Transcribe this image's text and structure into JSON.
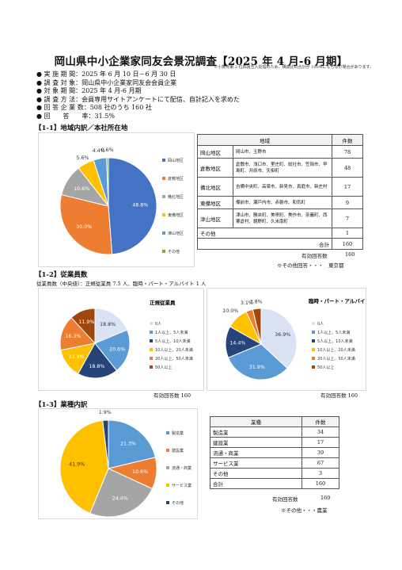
{
  "header": {
    "title": "岡山県中小企業家同友会景況調査【2025 年 4 月-6 月期】",
    "note": "※小数点第 2 位四捨五入処理のため、構成比の合計が 100%にならない場合があります。",
    "meta": [
      "● 実 施 期 間：2025 年 6 月 10 日－6 月 30 日",
      "● 調 査 対 象：岡山県中小企業家同友会会員企業",
      "● 対 象 期 間：2025 年 4 月-6 月期",
      "● 調 査 方 法：会員専用サイトアンケートにて配信、自計記入を求めた",
      "● 回 答 企 業 数：508 社のうち 160 社",
      "● 回　　答　　率：31.5%"
    ]
  },
  "colors": {
    "blue": "#4472c4",
    "orange": "#ed7d31",
    "gray": "#a5a5a5",
    "yellow": "#ffc000",
    "lightblue": "#5b9bd5",
    "green": "#70ad47",
    "navy": "#264478",
    "brown": "#9e480e",
    "paleblue": "#dae3f3"
  },
  "sec1": {
    "heading": "【1-1】地域内訳／本社所在地",
    "table_headers": [
      "地域",
      "件数"
    ],
    "rows": [
      {
        "region": "岡山地区",
        "cities": "岡山市、玉野市",
        "count": "78"
      },
      {
        "region": "倉敷地区",
        "cities": "倉敷市、浅口市、里庄町、総社市、笠岡市、早島町、井原市、矢掛町",
        "count": "48"
      },
      {
        "region": "備北地区",
        "cities": "吉備中央町、高梁市、新見市、真庭市、新庄村",
        "count": "17"
      },
      {
        "region": "東備地区",
        "cities": "備前市、瀬戸内市、赤磐市、和気町",
        "count": "9"
      },
      {
        "region": "津山地区",
        "cities": "津山市、勝央町、美咲町、美作市、奈義町、西粟倉村、鏡野町、久米南町",
        "count": "7"
      },
      {
        "region": "その他",
        "cities": "",
        "count": "1"
      }
    ],
    "total_label": "合計",
    "total": "160",
    "valid_label": "有効回答数",
    "valid": "160",
    "footnote": "※その他回答・・・　東京都"
  },
  "sec2": {
    "heading": "【1-2】従業員数",
    "median": "従業員数（中央値）：正規従業員 7.5 人、臨時・パート・アルバイト 1 人",
    "chart1_title": "正規従業員",
    "chart2_title": "臨時・パート・アルバイト",
    "valid1": "有効回答数 160",
    "valid2": "有効回答数 160"
  },
  "sec3": {
    "heading": "【1-3】業種内訳",
    "table_headers": [
      "業種",
      "件数"
    ],
    "rows": [
      {
        "name": "製造業",
        "count": "34"
      },
      {
        "name": "建設業",
        "count": "17"
      },
      {
        "name": "流通・商業",
        "count": "39"
      },
      {
        "name": "サービス業",
        "count": "67"
      },
      {
        "name": "その他",
        "count": "3"
      },
      {
        "name": "合計",
        "count": "160"
      }
    ],
    "valid_label": "有効回答数",
    "valid": "160",
    "footnote": "※その他・・・農業"
  },
  "chart_data": [
    {
      "type": "pie",
      "categories": [
        "岡山地区",
        "倉敷地区",
        "備北地区",
        "東備地区",
        "津山地区",
        "その他"
      ],
      "values": [
        48.8,
        30.0,
        10.6,
        5.6,
        4.4,
        0.6
      ],
      "labels": [
        "48.8%",
        "30.0%",
        "10.6%",
        "5.6%",
        "4.4%",
        "0.6%"
      ],
      "legend": "right"
    },
    {
      "type": "pie",
      "title": "正規従業員",
      "categories": [
        "0人",
        "1人以上、5人未満",
        "5人以上、10人未満",
        "10人以上、20人未満",
        "20人以上、50人未満",
        "50人以上"
      ],
      "values": [
        18.8,
        20.6,
        18.8,
        13.8,
        16.3,
        11.9
      ],
      "labels": [
        "18.8%",
        "20.6%",
        "18.8%",
        "13.8%",
        "16.3%",
        "11.9%"
      ],
      "legend": "right"
    },
    {
      "type": "pie",
      "title": "臨時・パート・アルバイト",
      "categories": [
        "0人",
        "1人以上、5人未満",
        "5人以上、10人未満",
        "10人以上、20人未満",
        "20人以上、50人未満",
        "50人以上"
      ],
      "values": [
        36.9,
        31.9,
        14.4,
        10.0,
        3.1,
        3.8
      ],
      "labels": [
        "36.9%",
        "31.9%",
        "14.4%",
        "10.0%",
        "3.1%",
        "3.8%"
      ],
      "legend": "right"
    },
    {
      "type": "pie",
      "categories": [
        "製造業",
        "建設業",
        "流通・商業",
        "サービス業",
        "その他"
      ],
      "values": [
        21.3,
        10.6,
        24.4,
        41.9,
        1.9
      ],
      "labels": [
        "21.3%",
        "10.6%",
        "24.4%",
        "41.9%",
        "1.9%"
      ],
      "legend": "right"
    }
  ]
}
